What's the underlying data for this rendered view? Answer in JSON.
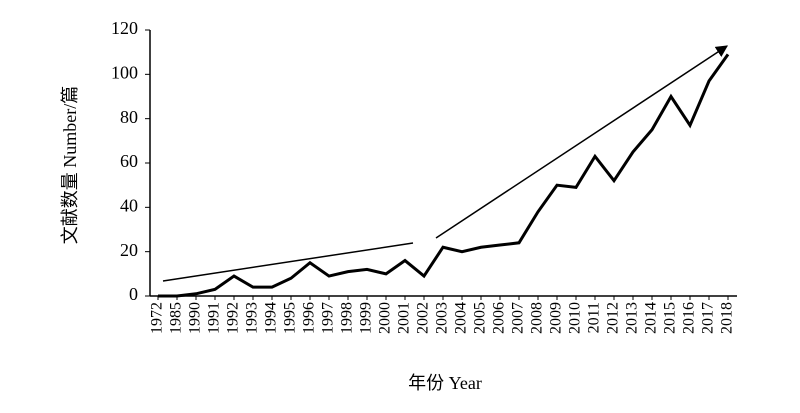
{
  "chart_data": {
    "type": "line",
    "y_label": "文献数量 Number/篇",
    "x_label": "年份 Year",
    "categories": [
      "1972",
      "1985",
      "1990",
      "1991",
      "1992",
      "1993",
      "1994",
      "1995",
      "1996",
      "1997",
      "1998",
      "1999",
      "2000",
      "2001",
      "2002",
      "2003",
      "2004",
      "2005",
      "2006",
      "2007",
      "2008",
      "2009",
      "2010",
      "2011",
      "2012",
      "2013",
      "2014",
      "2015",
      "2016",
      "2017",
      "2018"
    ],
    "values": [
      0,
      0,
      1,
      3,
      9,
      4,
      4,
      8,
      15,
      9,
      11,
      12,
      10,
      16,
      9,
      22,
      20,
      22,
      23,
      24,
      38,
      50,
      49,
      63,
      52,
      65,
      75,
      90,
      77,
      97,
      109
    ],
    "color": "#000000",
    "ylim": [
      0,
      120
    ],
    "yticks": [
      0,
      20,
      40,
      60,
      80,
      100,
      120
    ]
  }
}
